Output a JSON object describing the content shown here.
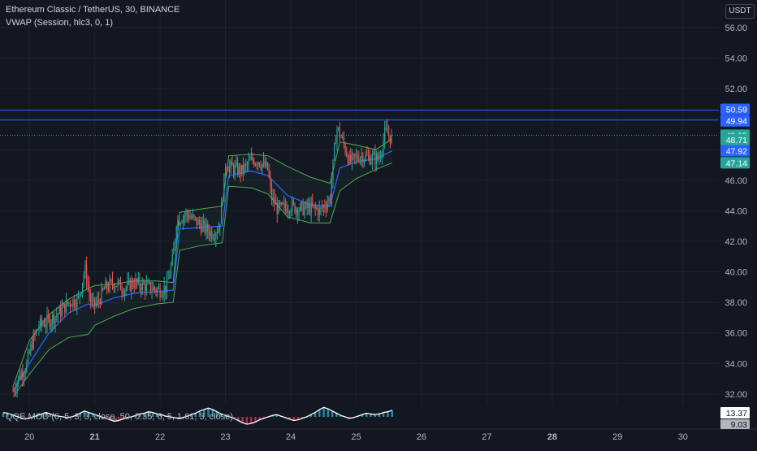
{
  "header": {
    "title": "Ethereum Classic / TetherUS, 30, BINANCE",
    "vwap_legend": "VWAP (Session, hlc3, 0, 1)",
    "oscillator_legend": "QQE MOD (6, 5, 3, 3, close, 50, 0.35, 6, 5, 1.61, 3, close)",
    "currency_button": "USDT"
  },
  "colors": {
    "background": "#131722",
    "up": "#26a69a",
    "down": "#ef5350",
    "vwap": "#2962ff",
    "band": "#4caf50",
    "hline": "#2962ff",
    "osc_up": "#2e9ab5",
    "osc_down": "#c0315a"
  },
  "price_axis": {
    "ticks": [
      "56.00",
      "54.00",
      "52.00",
      "50.00",
      "48.00",
      "46.00",
      "44.00",
      "42.00",
      "40.00",
      "38.00",
      "36.00",
      "34.00",
      "32.00"
    ]
  },
  "time_axis": {
    "ticks": [
      "20",
      "21",
      "22",
      "23",
      "24",
      "25",
      "26",
      "27",
      "28",
      "29",
      "30"
    ]
  },
  "price_labels": [
    {
      "value": "50.59",
      "color": "#2962ff"
    },
    {
      "value": "49.94",
      "color": "#2962ff"
    },
    {
      "value": "48.95",
      "color": "#26a69a"
    },
    {
      "value": "48.71",
      "color": "#26a69a"
    },
    {
      "value": "47.92",
      "color": "#2962ff"
    },
    {
      "value": "47.14",
      "color": "#26a69a"
    }
  ],
  "oscillator_labels": [
    {
      "value": "13.37"
    },
    {
      "value": "9.03"
    }
  ],
  "chart_data": {
    "type": "candlestick",
    "symbol": "ETCUSDT",
    "ylim": [
      31.3,
      57.8
    ],
    "xlim": [
      19.55,
      30.55
    ],
    "horizontal_lines": [
      50.59,
      49.94
    ],
    "path": [
      [
        19.75,
        32.2
      ],
      [
        19.85,
        33.2
      ],
      [
        19.95,
        33.8
      ],
      [
        20.05,
        35.5
      ],
      [
        20.15,
        36.5
      ],
      [
        20.3,
        36.8
      ],
      [
        20.45,
        37.3
      ],
      [
        20.6,
        38.0
      ],
      [
        20.75,
        38.2
      ],
      [
        20.85,
        40.2
      ],
      [
        20.95,
        37.8
      ],
      [
        21.05,
        38.0
      ],
      [
        21.15,
        38.9
      ],
      [
        21.3,
        39.3
      ],
      [
        21.45,
        38.9
      ],
      [
        21.6,
        39.3
      ],
      [
        21.8,
        39.0
      ],
      [
        22.0,
        38.8
      ],
      [
        22.1,
        39.0
      ],
      [
        22.2,
        41.0
      ],
      [
        22.25,
        43.3
      ],
      [
        22.4,
        43.8
      ],
      [
        22.55,
        43.3
      ],
      [
        22.7,
        42.8
      ],
      [
        22.8,
        42.5
      ],
      [
        22.9,
        42.9
      ],
      [
        22.95,
        44.6
      ],
      [
        23.0,
        47.0
      ],
      [
        23.1,
        46.8
      ],
      [
        23.25,
        46.6
      ],
      [
        23.4,
        47.3
      ],
      [
        23.5,
        47.3
      ],
      [
        23.65,
        46.7
      ],
      [
        23.7,
        44.9
      ],
      [
        23.8,
        44.1
      ],
      [
        24.0,
        44.3
      ],
      [
        24.15,
        44.1
      ],
      [
        24.3,
        44.2
      ],
      [
        24.45,
        44.0
      ],
      [
        24.6,
        44.8
      ],
      [
        24.7,
        49.5
      ],
      [
        24.8,
        48.5
      ],
      [
        24.9,
        47.2
      ],
      [
        25.05,
        47.6
      ],
      [
        25.2,
        47.5
      ],
      [
        25.35,
        47.4
      ],
      [
        25.45,
        49.2
      ],
      [
        25.55,
        48.7
      ]
    ],
    "vwap": [
      [
        19.75,
        32.2
      ],
      [
        20.0,
        34.0
      ],
      [
        20.3,
        36.0
      ],
      [
        20.6,
        37.3
      ],
      [
        20.9,
        37.9
      ],
      [
        21.0,
        37.8
      ],
      [
        21.3,
        38.3
      ],
      [
        21.6,
        38.6
      ],
      [
        21.95,
        38.7
      ],
      [
        22.2,
        38.8
      ],
      [
        22.3,
        42.8
      ],
      [
        22.6,
        42.9
      ],
      [
        22.95,
        43.0
      ],
      [
        23.05,
        46.3
      ],
      [
        23.4,
        46.6
      ],
      [
        23.65,
        46.3
      ],
      [
        23.95,
        45.0
      ],
      [
        24.3,
        44.4
      ],
      [
        24.6,
        44.3
      ],
      [
        24.75,
        46.8
      ],
      [
        25.0,
        47.2
      ],
      [
        25.3,
        47.4
      ],
      [
        25.55,
        47.92
      ]
    ],
    "upper_band": [
      [
        19.75,
        32.5
      ],
      [
        20.0,
        35.5
      ],
      [
        20.3,
        37.2
      ],
      [
        20.6,
        38.2
      ],
      [
        20.9,
        38.9
      ],
      [
        21.0,
        39.1
      ],
      [
        21.3,
        39.2
      ],
      [
        21.6,
        39.4
      ],
      [
        21.95,
        39.4
      ],
      [
        22.2,
        39.3
      ],
      [
        22.3,
        43.9
      ],
      [
        22.6,
        44.1
      ],
      [
        22.95,
        44.3
      ],
      [
        23.05,
        47.6
      ],
      [
        23.4,
        47.7
      ],
      [
        23.65,
        47.6
      ],
      [
        23.95,
        46.9
      ],
      [
        24.3,
        46.2
      ],
      [
        24.6,
        45.8
      ],
      [
        24.75,
        48.5
      ],
      [
        25.0,
        48.3
      ],
      [
        25.3,
        48.0
      ],
      [
        25.55,
        48.71
      ]
    ],
    "lower_band": [
      [
        19.75,
        31.8
      ],
      [
        20.0,
        33.3
      ],
      [
        20.3,
        34.9
      ],
      [
        20.6,
        35.7
      ],
      [
        20.9,
        35.9
      ],
      [
        21.0,
        36.5
      ],
      [
        21.3,
        37.1
      ],
      [
        21.6,
        37.6
      ],
      [
        21.95,
        37.9
      ],
      [
        22.2,
        38.0
      ],
      [
        22.3,
        41.4
      ],
      [
        22.6,
        41.7
      ],
      [
        22.95,
        41.9
      ],
      [
        23.05,
        45.6
      ],
      [
        23.4,
        45.5
      ],
      [
        23.65,
        45.1
      ],
      [
        23.95,
        43.6
      ],
      [
        24.3,
        43.2
      ],
      [
        24.6,
        43.2
      ],
      [
        24.75,
        45.3
      ],
      [
        25.0,
        46.1
      ],
      [
        25.3,
        46.7
      ],
      [
        25.55,
        47.14
      ]
    ],
    "oscillator": {
      "start": 19.6,
      "end": 25.55,
      "values": [
        6,
        5,
        3,
        1,
        -1,
        -3,
        -2,
        0,
        2,
        4,
        6,
        4,
        2,
        1,
        0,
        -1,
        0,
        2,
        5,
        8,
        6,
        4,
        2,
        0,
        -2,
        -4,
        -6,
        -5,
        -3,
        -1,
        0,
        2,
        4,
        5,
        7,
        6,
        4,
        3,
        1,
        0,
        -1,
        -2,
        -1,
        1,
        3,
        5,
        8,
        10,
        12,
        10,
        7,
        4,
        2,
        0,
        -2,
        -5,
        -8,
        -10,
        -9,
        -7,
        -4,
        -2,
        0,
        2,
        3,
        1,
        -1,
        -3,
        -5,
        -4,
        -2,
        0,
        3,
        6,
        10,
        13,
        11,
        8,
        5,
        2,
        0,
        -2,
        -1,
        1,
        3,
        5,
        4,
        3,
        4,
        6,
        7,
        9
      ]
    }
  }
}
